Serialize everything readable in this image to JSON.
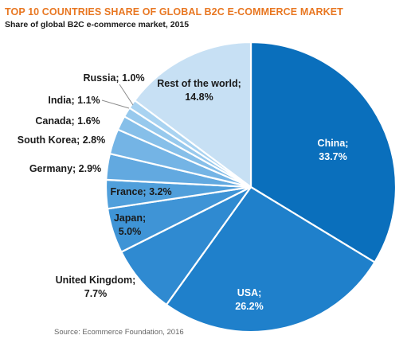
{
  "title": "TOP 10 COUNTRIES SHARE OF GLOBAL B2C E-COMMERCE MARKET",
  "subtitle": "Share of global B2C e-commerce market, 2015",
  "source": "Source: Ecommerce Foundation, 2016",
  "chart_data": {
    "type": "pie",
    "unit": "%",
    "slices": [
      {
        "name": "China",
        "value": 33.7,
        "label": "China;",
        "value_label": "33.7%",
        "color": "#0a6fbc"
      },
      {
        "name": "USA",
        "value": 26.2,
        "label": "USA;",
        "value_label": "26.2%",
        "color": "#1f80cb"
      },
      {
        "name": "United Kingdom",
        "value": 7.7,
        "label": "United Kingdom;",
        "value_label": "7.7%",
        "color": "#2f8ad1"
      },
      {
        "name": "Japan",
        "value": 5.0,
        "label": "Japan;",
        "value_label": "5.0%",
        "color": "#3f94d6"
      },
      {
        "name": "France",
        "value": 3.2,
        "label": "France; 3.2%",
        "value_label": "",
        "color": "#509fdb"
      },
      {
        "name": "Germany",
        "value": 2.9,
        "label": "Germany; 2.9%",
        "value_label": "",
        "color": "#62a9e0"
      },
      {
        "name": "South Korea",
        "value": 2.8,
        "label": "South Korea; 2.8%",
        "value_label": "",
        "color": "#74b4e5"
      },
      {
        "name": "Canada",
        "value": 1.6,
        "label": "Canada; 1.6%",
        "value_label": "",
        "color": "#86bfe9"
      },
      {
        "name": "India",
        "value": 1.1,
        "label": "India; 1.1%",
        "value_label": "",
        "color": "#97c9ed"
      },
      {
        "name": "Russia",
        "value": 1.0,
        "label": "Russia; 1.0%",
        "value_label": "",
        "color": "#a9d3f1"
      },
      {
        "name": "Rest of the world",
        "value": 14.8,
        "label": "Rest of the world;",
        "value_label": "14.8%",
        "color": "#c7e0f4"
      }
    ]
  }
}
